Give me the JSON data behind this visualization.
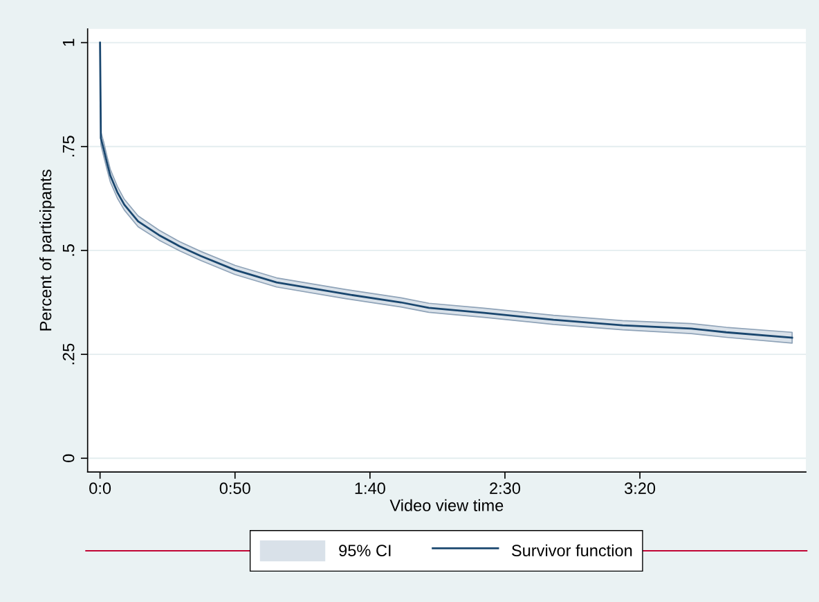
{
  "chart_data": {
    "type": "line",
    "xlabel": "Video view time",
    "ylabel": "Percent of participants",
    "series": [
      {
        "name": "95% CI",
        "type": "area",
        "color": "#d9e1e9"
      },
      {
        "name": "Survivor function",
        "color": "#1a476f",
        "x": [
          0,
          0.3,
          1.3,
          2.6,
          3.8,
          6.4,
          9,
          14.1,
          21.8,
          29.5,
          37.2,
          50,
          65.4,
          91,
          111.5,
          121.8,
          142.3,
          168,
          193.6,
          219,
          232,
          256.4
        ],
        "values": [
          1,
          0.77,
          0.745,
          0.71,
          0.68,
          0.64,
          0.61,
          0.57,
          0.537,
          0.51,
          0.487,
          0.453,
          0.423,
          0.395,
          0.375,
          0.362,
          0.35,
          0.333,
          0.32,
          0.312,
          0.303,
          0.29
        ],
        "lower": [
          1,
          0.755,
          0.728,
          0.694,
          0.665,
          0.626,
          0.597,
          0.557,
          0.525,
          0.499,
          0.476,
          0.442,
          0.412,
          0.384,
          0.364,
          0.351,
          0.339,
          0.322,
          0.309,
          0.3,
          0.291,
          0.277
        ],
        "upper": [
          1,
          0.785,
          0.762,
          0.726,
          0.695,
          0.654,
          0.623,
          0.583,
          0.549,
          0.521,
          0.498,
          0.464,
          0.434,
          0.406,
          0.386,
          0.373,
          0.361,
          0.344,
          0.331,
          0.324,
          0.315,
          0.303
        ]
      }
    ],
    "xlim": [
      -4.6,
      261.5
    ],
    "xticks": [
      {
        "value": 0,
        "label": "0:0"
      },
      {
        "value": 50,
        "label": "0:50"
      },
      {
        "value": 100,
        "label": "1:40"
      },
      {
        "value": 150,
        "label": "2:30"
      },
      {
        "value": 200,
        "label": "3:20"
      }
    ],
    "ylim": [
      -0.033,
      1.033
    ],
    "yticks": [
      {
        "value": 0,
        "label": "0"
      },
      {
        "value": 0.25,
        "label": ".25"
      },
      {
        "value": 0.5,
        "label": ".5"
      },
      {
        "value": 0.75,
        "label": ".75"
      },
      {
        "value": 1,
        "label": "1"
      }
    ],
    "grid": "y",
    "legend": "bottom"
  }
}
